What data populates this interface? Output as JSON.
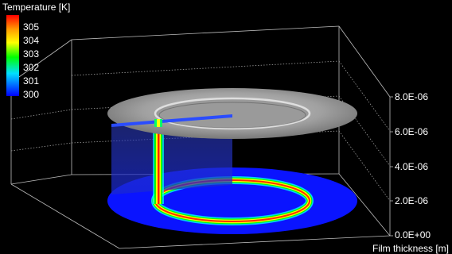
{
  "legend": {
    "title": "Temperature  [K]",
    "labels": [
      "305",
      "304",
      "303",
      "302",
      "301",
      "300"
    ]
  },
  "axis": {
    "title": "Film thickness  [m]",
    "ticks": [
      "8.0E-06",
      "6.0E-06",
      "4.0E-06",
      "2.0E-06",
      "0.0E+00"
    ]
  },
  "colors": {
    "background": "#000000",
    "disk_base": "#0a14ff",
    "plate": "#a8a8a8",
    "ring_hot": "#ff0000",
    "ring_warm": "#ffff00",
    "ring_mid": "#00ff00"
  }
}
